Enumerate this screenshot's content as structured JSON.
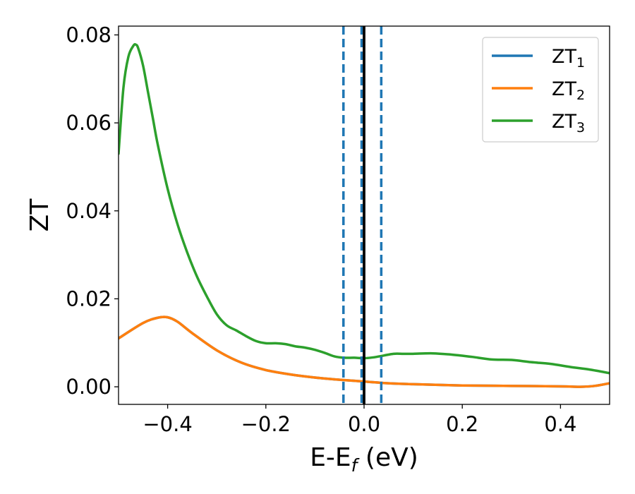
{
  "chart_data": {
    "type": "line",
    "xlabel": "E-E",
    "xlabel_sub": "f",
    "xlabel_unit": " (eV)",
    "ylabel": "ZT",
    "xlim": [
      -0.5,
      0.5
    ],
    "ylim": [
      -0.004,
      0.082
    ],
    "xticks": [
      -0.4,
      -0.2,
      0.0,
      0.2,
      0.4
    ],
    "xtick_labels": [
      "−0.4",
      "−0.2",
      "0.0",
      "0.2",
      "0.4"
    ],
    "yticks": [
      0.0,
      0.02,
      0.04,
      0.06,
      0.08
    ],
    "ytick_labels": [
      "0.00",
      "0.02",
      "0.04",
      "0.06",
      "0.08"
    ],
    "grid": false,
    "legend_position": "top-right",
    "vlines": [
      {
        "x": -0.042,
        "style": "dashed",
        "color": "#1f77b4"
      },
      {
        "x": -0.005,
        "style": "dashed",
        "color": "#1f77b4"
      },
      {
        "x": 0.035,
        "style": "dashed",
        "color": "#1f77b4"
      },
      {
        "x": 0.0,
        "style": "solid",
        "color": "#000000"
      }
    ],
    "series": [
      {
        "name": "ZT",
        "sub": "1",
        "color": "#1f77b4",
        "x": [
          -0.5,
          -0.45,
          -0.42,
          -0.4,
          -0.38,
          -0.35,
          -0.3,
          -0.25,
          -0.2,
          -0.15,
          -0.1,
          -0.05,
          0.0,
          0.05,
          0.1,
          0.2,
          0.3,
          0.4,
          0.44,
          0.47,
          0.5
        ],
        "y": [
          0.011,
          0.0145,
          0.0157,
          0.0158,
          0.0148,
          0.0122,
          0.0083,
          0.0055,
          0.0038,
          0.0028,
          0.0021,
          0.0016,
          0.0012,
          0.0008,
          0.0006,
          0.0003,
          0.0002,
          0.0001,
          0.0,
          0.0002,
          0.0008
        ]
      },
      {
        "name": "ZT",
        "sub": "2",
        "color": "#ff7f0e",
        "x": [
          -0.5,
          -0.45,
          -0.42,
          -0.4,
          -0.38,
          -0.35,
          -0.3,
          -0.25,
          -0.2,
          -0.15,
          -0.1,
          -0.05,
          0.0,
          0.05,
          0.1,
          0.2,
          0.3,
          0.4,
          0.44,
          0.47,
          0.5
        ],
        "y": [
          0.011,
          0.0145,
          0.0157,
          0.0158,
          0.0148,
          0.0122,
          0.0083,
          0.0055,
          0.0038,
          0.0028,
          0.0021,
          0.0016,
          0.0012,
          0.0008,
          0.0006,
          0.0003,
          0.0002,
          0.0001,
          0.0,
          0.0002,
          0.0008
        ]
      },
      {
        "name": "ZT",
        "sub": "3",
        "color": "#2ca02c",
        "x": [
          -0.5,
          -0.49,
          -0.48,
          -0.47,
          -0.465,
          -0.46,
          -0.45,
          -0.44,
          -0.43,
          -0.42,
          -0.4,
          -0.38,
          -0.36,
          -0.34,
          -0.32,
          -0.3,
          -0.28,
          -0.26,
          -0.24,
          -0.22,
          -0.2,
          -0.18,
          -0.16,
          -0.14,
          -0.12,
          -0.1,
          -0.08,
          -0.06,
          -0.04,
          -0.02,
          0.0,
          0.02,
          0.04,
          0.06,
          0.08,
          0.1,
          0.14,
          0.18,
          0.22,
          0.26,
          0.3,
          0.34,
          0.38,
          0.42,
          0.46,
          0.5
        ],
        "y": [
          0.053,
          0.068,
          0.075,
          0.0775,
          0.0778,
          0.077,
          0.073,
          0.067,
          0.061,
          0.055,
          0.045,
          0.037,
          0.0305,
          0.025,
          0.0205,
          0.0165,
          0.014,
          0.0128,
          0.0115,
          0.0104,
          0.0099,
          0.0099,
          0.0097,
          0.0092,
          0.0089,
          0.0084,
          0.0077,
          0.0069,
          0.0066,
          0.0066,
          0.0065,
          0.0067,
          0.0071,
          0.0075,
          0.0075,
          0.0075,
          0.0076,
          0.0073,
          0.0068,
          0.0062,
          0.0061,
          0.0056,
          0.0052,
          0.0045,
          0.0039,
          0.0031
        ]
      }
    ]
  }
}
